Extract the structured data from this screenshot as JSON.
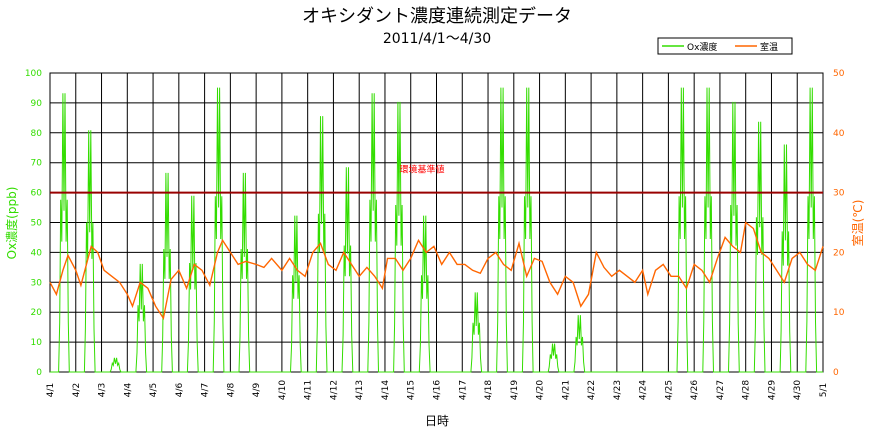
{
  "chart_data": {
    "type": "line",
    "title": "オキシダント濃度連続測定データ",
    "subtitle": "2011/4/1～4/30",
    "xlabel": "日時",
    "ylabel_left": "Ox濃度(ppb)",
    "ylabel_right": "室温(℃)",
    "ylim_left": [
      0,
      100
    ],
    "ylim_right": [
      0,
      50
    ],
    "yticks_left": [
      "0",
      "10",
      "20",
      "30",
      "40",
      "50",
      "60",
      "70",
      "80",
      "90",
      "100"
    ],
    "yticks_right": [
      "0",
      "10",
      "20",
      "30",
      "40",
      "50"
    ],
    "xticks": [
      "4/1",
      "4/2",
      "4/3",
      "4/4",
      "4/5",
      "4/6",
      "4/7",
      "4/8",
      "4/9",
      "4/10",
      "4/11",
      "4/12",
      "4/13",
      "4/14",
      "4/15",
      "4/16",
      "4/17",
      "4/18",
      "4/19",
      "4/20",
      "4/21",
      "4/22",
      "4/23",
      "4/24",
      "4/25",
      "4/26",
      "4/27",
      "4/28",
      "4/29",
      "4/30",
      "5/1"
    ],
    "x_range_days": [
      0,
      30
    ],
    "grid": true,
    "legend_position": "top-right",
    "reference_line": {
      "label": "環境基準値",
      "value_ppb": 60,
      "color": "#990000",
      "label_color": "#ff0000"
    },
    "series": [
      {
        "name": "Ox濃度",
        "axis": "left",
        "color": "#33dd00",
        "daily_peaks": [
          98,
          85,
          5,
          38,
          70,
          62,
          100,
          70,
          0,
          55,
          90,
          72,
          98,
          95,
          55,
          0,
          28,
          100,
          100,
          10,
          20,
          0,
          0,
          0,
          100,
          100,
          95,
          88,
          80,
          100
        ],
        "peak_hour": 13,
        "night_level": 0
      },
      {
        "name": "室温",
        "axis": "right",
        "color": "#ff6600",
        "daily_values": [
          [
            0,
            15
          ],
          [
            0.25,
            13
          ],
          [
            0.5,
            17
          ],
          [
            0.7,
            19.5
          ],
          [
            1,
            17
          ],
          [
            1.2,
            14.5
          ],
          [
            1.6,
            21
          ],
          [
            1.85,
            20
          ],
          [
            2.1,
            17
          ],
          [
            2.4,
            16
          ],
          [
            2.7,
            15
          ],
          [
            3.0,
            13
          ],
          [
            3.2,
            11
          ],
          [
            3.5,
            15
          ],
          [
            3.8,
            14
          ],
          [
            4.1,
            11
          ],
          [
            4.4,
            9
          ],
          [
            4.7,
            15.5
          ],
          [
            5.0,
            17
          ],
          [
            5.3,
            14
          ],
          [
            5.6,
            18
          ],
          [
            5.9,
            17
          ],
          [
            6.2,
            14.5
          ],
          [
            6.5,
            20
          ],
          [
            6.7,
            22
          ],
          [
            7.0,
            20
          ],
          [
            7.3,
            18
          ],
          [
            7.6,
            18.5
          ],
          [
            8.0,
            18
          ],
          [
            8.3,
            17.5
          ],
          [
            8.6,
            19
          ],
          [
            9.0,
            17
          ],
          [
            9.3,
            19
          ],
          [
            9.6,
            17
          ],
          [
            9.9,
            16
          ],
          [
            10.2,
            20
          ],
          [
            10.5,
            21.5
          ],
          [
            10.8,
            18
          ],
          [
            11.1,
            17
          ],
          [
            11.4,
            20
          ],
          [
            11.7,
            18
          ],
          [
            12.0,
            16
          ],
          [
            12.3,
            17.5
          ],
          [
            12.6,
            16
          ],
          [
            12.9,
            14
          ],
          [
            13.1,
            19
          ],
          [
            13.4,
            19
          ],
          [
            13.7,
            17
          ],
          [
            14.0,
            19
          ],
          [
            14.3,
            22
          ],
          [
            14.6,
            20
          ],
          [
            14.9,
            21
          ],
          [
            15.2,
            18
          ],
          [
            15.5,
            20
          ],
          [
            15.8,
            18
          ],
          [
            16.1,
            18
          ],
          [
            16.4,
            17
          ],
          [
            16.7,
            16.5
          ],
          [
            17.0,
            19
          ],
          [
            17.3,
            20
          ],
          [
            17.6,
            18
          ],
          [
            17.9,
            17
          ],
          [
            18.2,
            21.5
          ],
          [
            18.5,
            16
          ],
          [
            18.8,
            19
          ],
          [
            19.1,
            18.5
          ],
          [
            19.4,
            15
          ],
          [
            19.7,
            13
          ],
          [
            20.0,
            16
          ],
          [
            20.3,
            15
          ],
          [
            20.6,
            11
          ],
          [
            20.9,
            13
          ],
          [
            21.2,
            20
          ],
          [
            21.5,
            17.5
          ],
          [
            21.8,
            16
          ],
          [
            22.1,
            17
          ],
          [
            22.4,
            16
          ],
          [
            22.7,
            15
          ],
          [
            23.0,
            17
          ],
          [
            23.2,
            13
          ],
          [
            23.5,
            17
          ],
          [
            23.8,
            18
          ],
          [
            24.1,
            16
          ],
          [
            24.4,
            16
          ],
          [
            24.7,
            14
          ],
          [
            25.0,
            18
          ],
          [
            25.3,
            17
          ],
          [
            25.6,
            15
          ],
          [
            25.9,
            19
          ],
          [
            26.2,
            22.5
          ],
          [
            26.5,
            21
          ],
          [
            26.8,
            20
          ],
          [
            27.0,
            25
          ],
          [
            27.3,
            24
          ],
          [
            27.6,
            20
          ],
          [
            27.9,
            19
          ],
          [
            28.2,
            17
          ],
          [
            28.5,
            15
          ],
          [
            28.8,
            19
          ],
          [
            29.1,
            20
          ],
          [
            29.4,
            18
          ],
          [
            29.7,
            17
          ],
          [
            30.0,
            21
          ]
        ]
      }
    ]
  }
}
